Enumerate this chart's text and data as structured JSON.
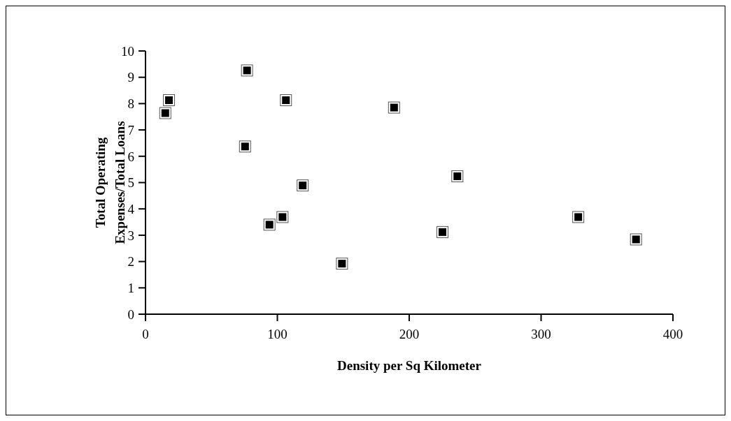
{
  "chart_data": {
    "type": "scatter",
    "xlabel": "Density per Sq Kilometer",
    "ylabel": "Total Operating Expenses/Total Loans",
    "xlim": [
      0,
      400
    ],
    "xticks": [
      0,
      100,
      200,
      300,
      400
    ],
    "ylim": [
      0,
      10
    ],
    "yticks": [
      0,
      1,
      2,
      3,
      4,
      5,
      6,
      7,
      8,
      9,
      10
    ],
    "grid": false,
    "legend": false,
    "marker": "square",
    "series": [
      {
        "color": "#000000",
        "x": [
          15,
          17.8,
          77,
          75.5,
          106.5,
          119.2,
          103.9,
          94,
          149,
          188.5,
          236.5,
          225.2,
          328.2,
          372
        ],
        "values": [
          7.64,
          8.13,
          9.26,
          6.37,
          8.13,
          4.89,
          3.69,
          3.4,
          1.92,
          7.85,
          5.24,
          3.12,
          3.69,
          2.84
        ]
      }
    ]
  }
}
